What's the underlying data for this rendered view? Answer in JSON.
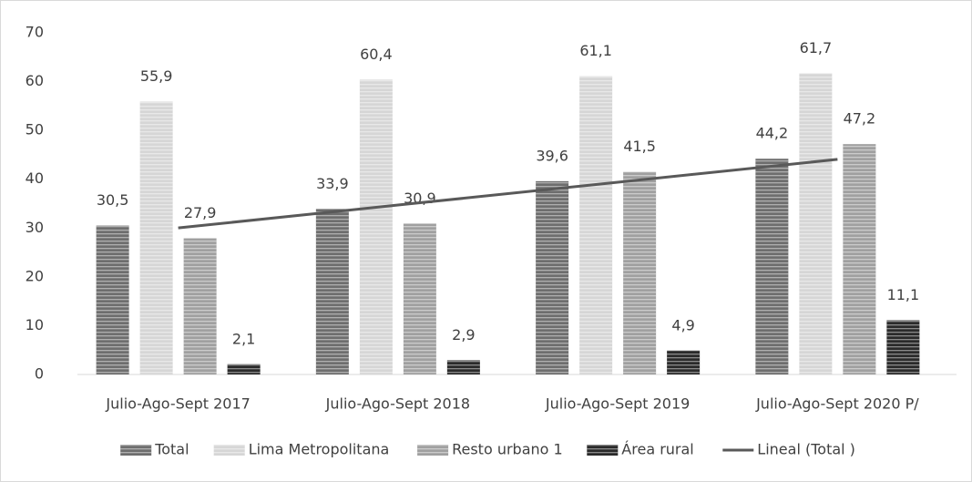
{
  "chart_data": {
    "type": "bar",
    "categories": [
      "Julio-Ago-Sept 2017",
      "Julio-Ago-Sept 2018",
      "Julio-Ago-Sept 2019",
      "Julio-Ago-Sept 2020 P/"
    ],
    "series": [
      {
        "name": "Total",
        "color": "#6e6e6e",
        "values": [
          30.5,
          33.9,
          39.6,
          44.2
        ],
        "value_labels": [
          "30,5",
          "33,9",
          "39,6",
          "44,2"
        ]
      },
      {
        "name": "Lima Metropolitana",
        "color": "#d6d6d6",
        "values": [
          55.9,
          60.4,
          61.1,
          61.7
        ],
        "value_labels": [
          "55,9",
          "60,4",
          "61,1",
          "61,7"
        ]
      },
      {
        "name": "Resto urbano 1",
        "color": "#a0a0a0",
        "values": [
          27.9,
          30.9,
          41.5,
          47.2
        ],
        "value_labels": [
          "27,9",
          "30,9",
          "41,5",
          "47,2"
        ]
      },
      {
        "name": "Área rural",
        "color": "#2a2a2a",
        "values": [
          2.1,
          2.9,
          4.9,
          11.1
        ],
        "value_labels": [
          "2,1",
          "2,9",
          "4,9",
          "11,1"
        ]
      },
      {
        "name": "Lineal (Total )",
        "type": "line",
        "color": "#595959",
        "values": [
          30.03,
          34.71,
          39.39,
          44.07
        ]
      }
    ],
    "ylim": [
      0,
      70
    ],
    "yticks": [
      0,
      10,
      20,
      30,
      40,
      50,
      60,
      70
    ],
    "grid": false,
    "legend": "bottom"
  }
}
